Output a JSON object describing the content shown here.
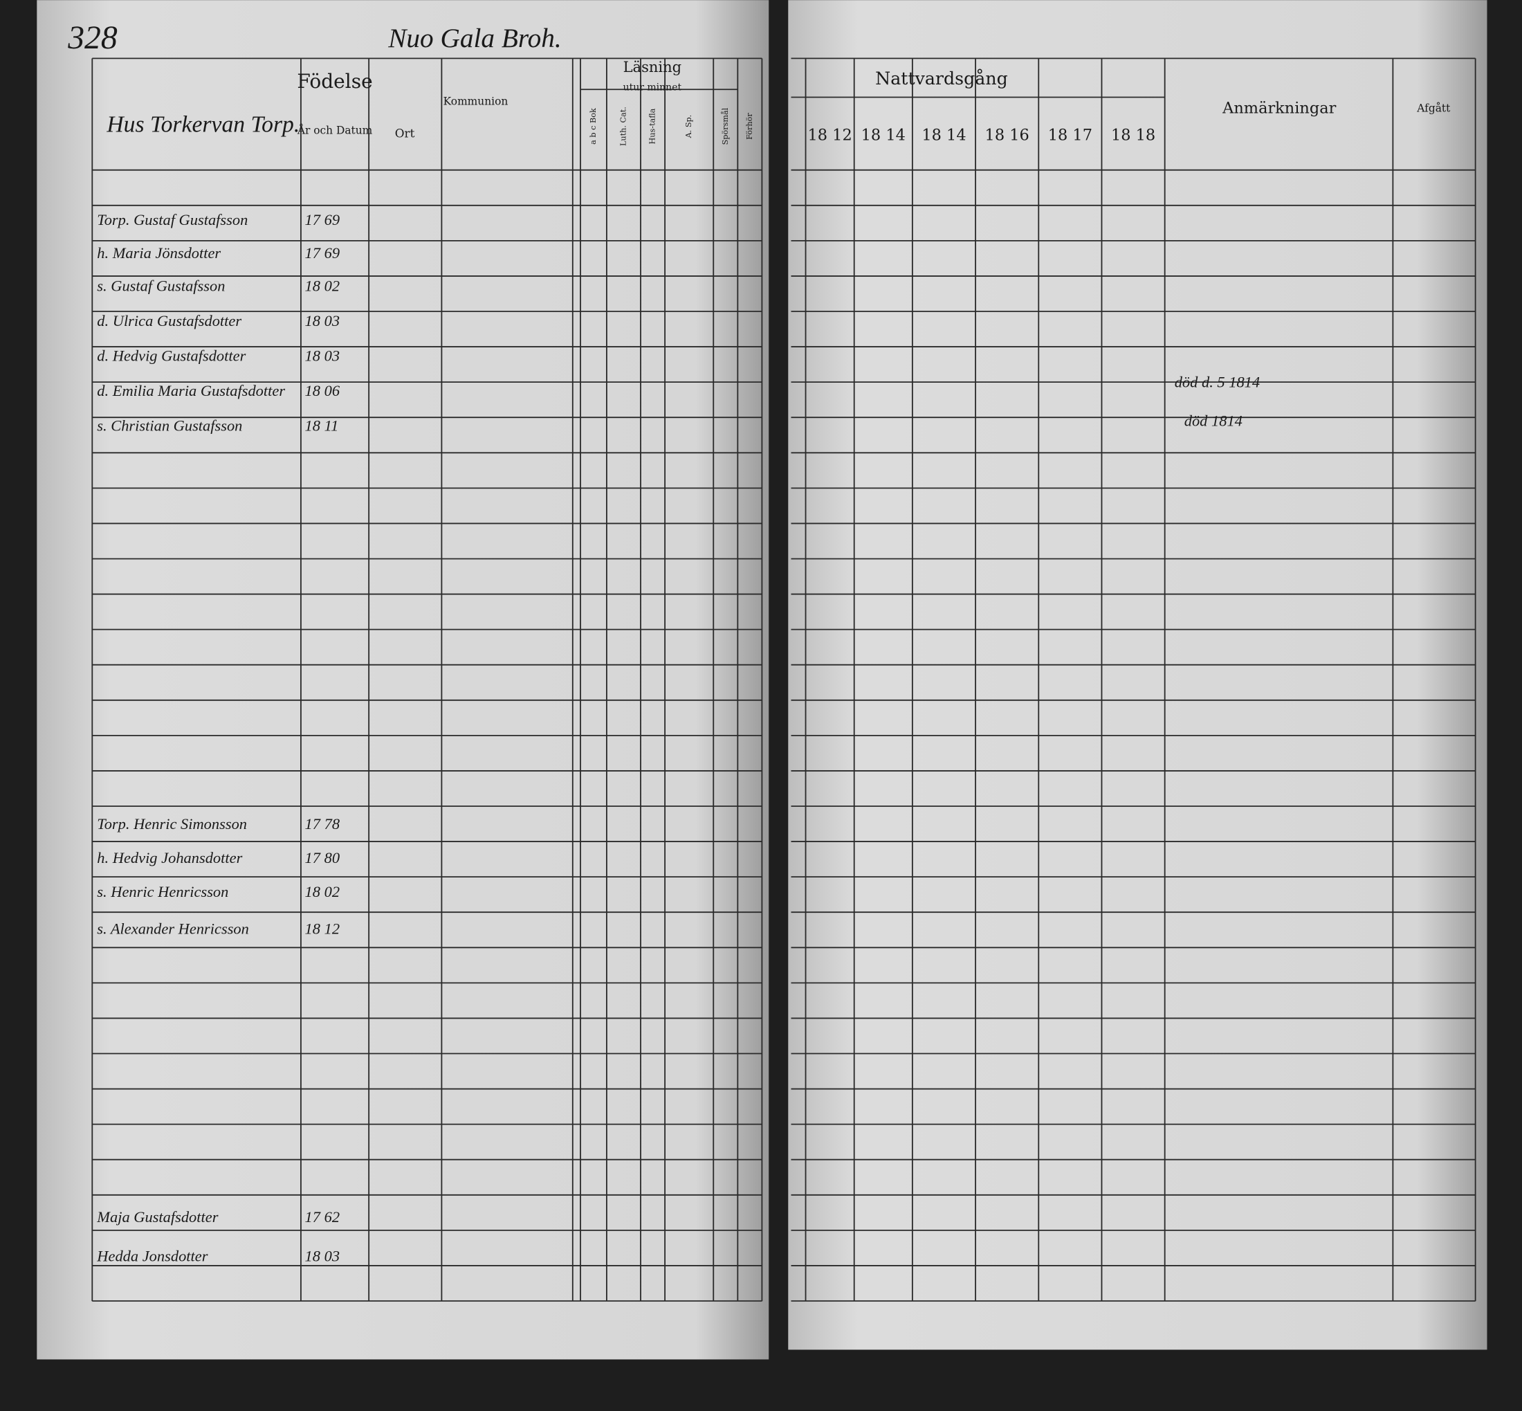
{
  "header": {
    "page_number": "328",
    "parish": "Nuo Gala Broh.",
    "title_left": "Hus Torkervan Torp.",
    "birth": "Födelse",
    "birth_date": "År och Datum",
    "birth_place": "Ort",
    "communion": "Kommunion",
    "reading": "Läsning",
    "by_heart": "utur minnet",
    "reading_cols": [
      "a b c Bok",
      "Luth. Cat.",
      "Hus-tafla",
      "A. Sp.",
      "Spörsmål",
      "Förhör"
    ],
    "communion_title": "Nattvardsgång",
    "communion_years": [
      "18 12",
      "18 14",
      "18 14",
      "18 16",
      "18 17",
      "18 18"
    ],
    "remarks": "Anmärkningar",
    "departed": "Afgått"
  },
  "entries": [
    {
      "name": "Torp. Gustaf Gustafsson",
      "birth": "17 69"
    },
    {
      "name": "h. Maria Jönsdotter",
      "birth": "17 69"
    },
    {
      "name": "s. Gustaf Gustafsson",
      "birth": "18 02"
    },
    {
      "name": "d. Ulrica Gustafsdotter",
      "birth": "18 03"
    },
    {
      "name": "d. Hedvig Gustafsdotter",
      "birth": "18 03"
    },
    {
      "name": "d. Emilia Maria Gustafsdotter",
      "birth": "18 06"
    },
    {
      "name": "s. Christian Gustafsson",
      "birth": "18 11"
    },
    {
      "name": "Torp. Henric Simonsson",
      "birth": "17 78"
    },
    {
      "name": "h. Hedvig Johansdotter",
      "birth": "17 80"
    },
    {
      "name": "s. Henric Henricsson",
      "birth": "18 02"
    },
    {
      "name": "s. Alexander Henricsson",
      "birth": "18 12"
    },
    {
      "name": "Maja Gustafsdotter",
      "birth": "17 62"
    },
    {
      "name": "Hedda Jonsdotter",
      "birth": "18 03"
    }
  ],
  "notes": [
    "död d. 5 1814",
    "död 1814"
  ]
}
